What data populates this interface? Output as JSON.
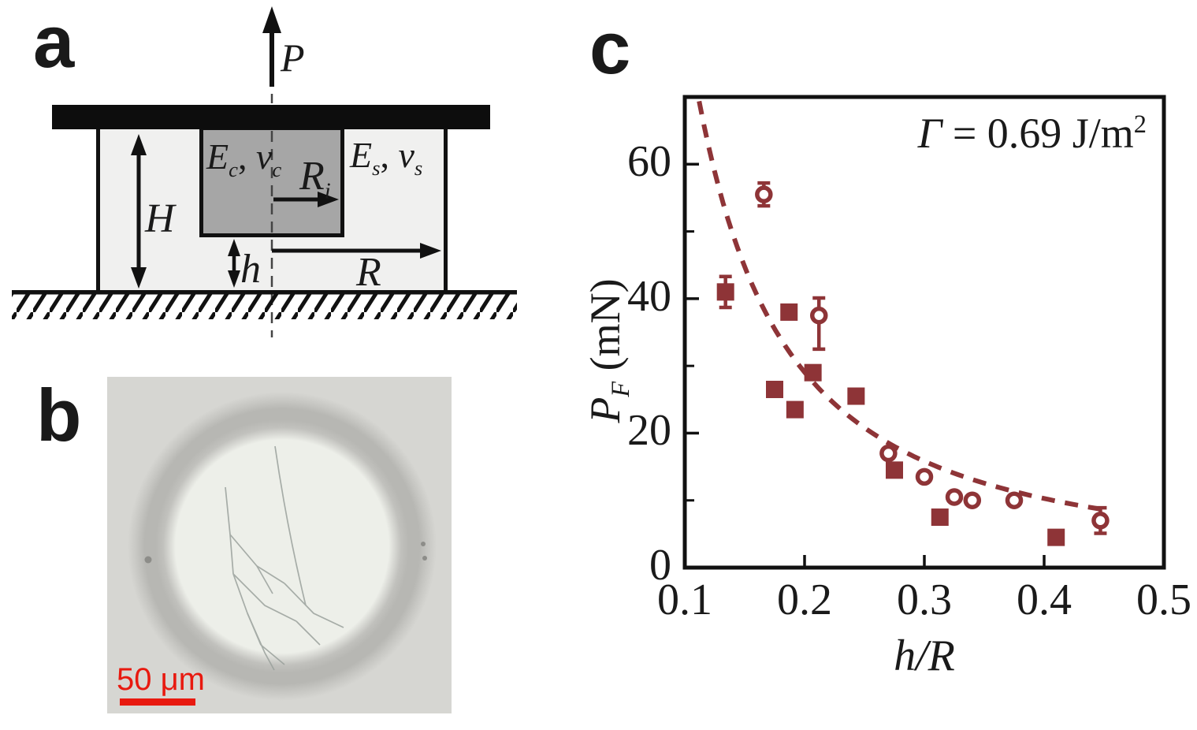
{
  "panel_a": {
    "letter": "a",
    "force_label": "P",
    "height_label": "H",
    "gap_label": "h",
    "outer_radius_label": "R",
    "inner_radius": {
      "base": "R",
      "sub": "i"
    },
    "cylinder_moduli": {
      "e": "E",
      "e_sub": "c",
      "sep": ", ",
      "v": "v",
      "v_sub": "c"
    },
    "substrate_moduli": {
      "e": "E",
      "e_sub": "s",
      "sep": ", ",
      "v": "v",
      "v_sub": "s"
    }
  },
  "panel_b": {
    "letter": "b",
    "scale_text": "50 μm",
    "scale_color": "#e8190f"
  },
  "panel_c": {
    "letter": "c",
    "annotation": {
      "gamma": "Γ",
      "body": " = 0.69 J/m",
      "sup": "2"
    },
    "ylabel": {
      "p": "P",
      "sub": "F",
      "units": " (mN)"
    },
    "xlabel": "h/R"
  },
  "chart_data": {
    "type": "scatter",
    "title": "",
    "xlabel": "h/R",
    "ylabel": "P_F (mN)",
    "annotation": "Γ = 0.69 J/m²",
    "xlim": [
      0.1,
      0.5
    ],
    "ylim": [
      0,
      70
    ],
    "grid": false,
    "axis_color": "#111111",
    "marker_color": "#8e3437",
    "x_ticks": [
      {
        "v": 0.1,
        "label": "0.1"
      },
      {
        "v": 0.2,
        "label": "0.2"
      },
      {
        "v": 0.3,
        "label": "0.3"
      },
      {
        "v": 0.4,
        "label": "0.4"
      },
      {
        "v": 0.5,
        "label": "0.5"
      }
    ],
    "y_ticks": [
      {
        "v": 0,
        "label": "0"
      },
      {
        "v": 20,
        "label": "20"
      },
      {
        "v": 40,
        "label": "40"
      },
      {
        "v": 60,
        "label": "60"
      }
    ],
    "y_minor_ticks": [
      10,
      30,
      50
    ],
    "series": [
      {
        "name": "filled-squares",
        "marker": "square",
        "color": "#8e3437",
        "points": [
          {
            "x": 0.134,
            "y": 41,
            "yerr": 2.3
          },
          {
            "x": 0.175,
            "y": 26.5
          },
          {
            "x": 0.187,
            "y": 38
          },
          {
            "x": 0.192,
            "y": 23.5
          },
          {
            "x": 0.207,
            "y": 29
          },
          {
            "x": 0.243,
            "y": 25.5
          },
          {
            "x": 0.275,
            "y": 14.5
          },
          {
            "x": 0.313,
            "y": 7.5
          },
          {
            "x": 0.41,
            "y": 4.5
          }
        ]
      },
      {
        "name": "open-circles",
        "marker": "circle-open",
        "color": "#8e3437",
        "points": [
          {
            "x": 0.166,
            "y": 55.5,
            "yerr": 1.7
          },
          {
            "x": 0.212,
            "y": 37.5,
            "yerr_up": 2.6,
            "yerr_down": 5
          },
          {
            "x": 0.27,
            "y": 17
          },
          {
            "x": 0.3,
            "y": 13.5
          },
          {
            "x": 0.325,
            "y": 10.5
          },
          {
            "x": 0.34,
            "y": 10
          },
          {
            "x": 0.375,
            "y": 10
          },
          {
            "x": 0.447,
            "y": 7,
            "yerr": 1.9
          }
        ]
      }
    ],
    "fit_curve": {
      "name": "theory-fit",
      "style": "dashed",
      "color": "#8e3437",
      "model": "power",
      "A": 2.6,
      "exponent": -1.5,
      "x_range": [
        0.112,
        0.455
      ]
    }
  }
}
